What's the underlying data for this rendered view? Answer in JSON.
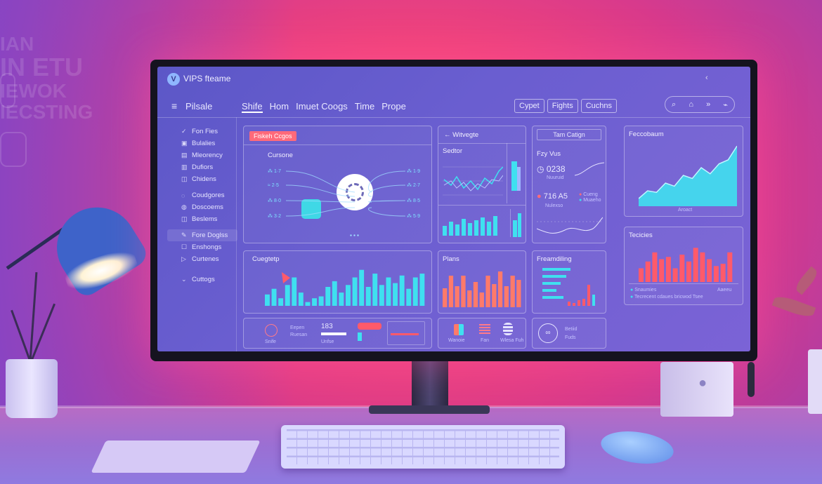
{
  "wall": {
    "lines": [
      "IAN",
      "IN ETU",
      "IEWOK",
      "IECSTING"
    ]
  },
  "app": {
    "logo_letter": "V",
    "title": "VIPS fteame",
    "collapse_icon": "chevron-left-icon",
    "collapse_glyph": "‹"
  },
  "nav": {
    "menu_icon": "≡",
    "sidebar_title": "Pilsale",
    "tabs": [
      {
        "label": "Shife",
        "active": true
      },
      {
        "label": "Hom",
        "active": false
      },
      {
        "label": "Imuet Coogs",
        "active": false
      },
      {
        "label": "Time",
        "active": false
      },
      {
        "label": "Prope",
        "active": false
      }
    ],
    "pills": [
      "Cypet",
      "Fights",
      "Cuchns"
    ],
    "tools": [
      "⌕",
      "⌂",
      "»",
      "⌁"
    ]
  },
  "sidebar": {
    "items": [
      {
        "label": "Fon Fies",
        "icon": "✓"
      },
      {
        "label": "Bulalies",
        "icon": "▣"
      },
      {
        "label": "Mleorency",
        "icon": "▤"
      },
      {
        "label": "Dufiors",
        "icon": "▥"
      },
      {
        "label": "Chidens",
        "icon": "◫"
      },
      {
        "label": "Coudgores",
        "icon": "◌"
      },
      {
        "label": "Doscoems",
        "icon": "◍"
      },
      {
        "label": "Beslems",
        "icon": "◫"
      },
      {
        "label": "Fore Doglss",
        "icon": "✎"
      },
      {
        "label": "Enshongs",
        "icon": "☐"
      },
      {
        "label": "Curtenes",
        "icon": "▷"
      },
      {
        "label": "Cuttogs",
        "icon": "⌄"
      }
    ]
  },
  "panels": {
    "hub": {
      "tag": "Fiskeh Ccgos",
      "label": "Cursone"
    },
    "widget": {
      "title": "Witvegte",
      "left_title": "Sedtor"
    },
    "stats": {
      "title": "Tam Catign",
      "sub": "Fzy Vus",
      "value1": "0238",
      "value1_caption": "Nuuruid",
      "value2": "716 A5",
      "value2_caption": "Nulexso",
      "legend": [
        "Cueng",
        "Muaeho"
      ]
    },
    "trend": {
      "title": "Feccobaum",
      "axis": "Aroact"
    },
    "heat": {
      "title": "Tecicies",
      "legend": [
        "Snaumies",
        "Tecrecent cdaues bricwod Tsee"
      ],
      "legend_right": "Aaeeu"
    },
    "compare": {
      "title": "Cuegtetp"
    },
    "plane": {
      "title": "Plans"
    },
    "freq": {
      "title": "Freamdiling"
    },
    "foot1": {
      "caption1": "Snife",
      "caption2": "Ruesan",
      "small": "Eepen",
      "value": "183",
      "value_caption": "Unfse"
    },
    "foot2": {
      "caption": "Wanoie",
      "caption2": "Fan",
      "caption3": "Wlesa Fuh"
    },
    "foot3": {
      "label1": "Betiid",
      "label2": "Fuds"
    }
  },
  "colors": {
    "accent": "#3fe0f0",
    "coral": "#ff7a6a",
    "red": "#ff5a6a",
    "screen": "#6a5ed0"
  },
  "chart_data": [
    {
      "type": "bar",
      "title": "Cuegtetp",
      "values": [
        12,
        18,
        8,
        22,
        30,
        14,
        4,
        8,
        10,
        20,
        26,
        14,
        22,
        30,
        38,
        20,
        34,
        22,
        30,
        24,
        32,
        18,
        30,
        34
      ]
    },
    {
      "type": "bar",
      "title": "Plans",
      "values": [
        18,
        30,
        20,
        30,
        16,
        24,
        14,
        30,
        22,
        34,
        20,
        30,
        26
      ]
    },
    {
      "type": "bar",
      "title": "Tecicies",
      "values": [
        12,
        18,
        26,
        20,
        22,
        12,
        24,
        18,
        30,
        26,
        20,
        14,
        16,
        26
      ]
    },
    {
      "type": "area",
      "title": "Feccobaum",
      "values": [
        10,
        20,
        18,
        30,
        26,
        40,
        36,
        50,
        42,
        55,
        60,
        78
      ]
    }
  ]
}
